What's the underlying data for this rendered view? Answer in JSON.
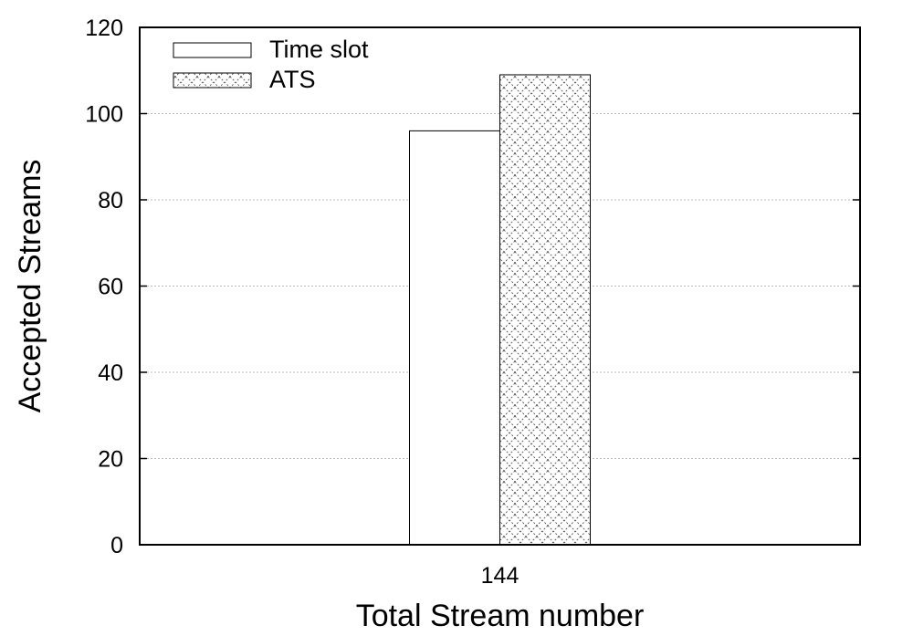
{
  "chart_data": {
    "type": "bar",
    "categories": [
      "144"
    ],
    "series": [
      {
        "name": "Time slot",
        "values": [
          96
        ],
        "pattern": "none"
      },
      {
        "name": "ATS",
        "values": [
          109
        ],
        "pattern": "crosshatch"
      }
    ],
    "xlabel": "Total Stream number",
    "ylabel": "Accepted Streams",
    "ylim": [
      0,
      120
    ],
    "yticks": [
      "0",
      "20",
      "40",
      "60",
      "80",
      "100",
      "120"
    ],
    "grid": "horizontal dotted",
    "legend_position": "top-left"
  }
}
